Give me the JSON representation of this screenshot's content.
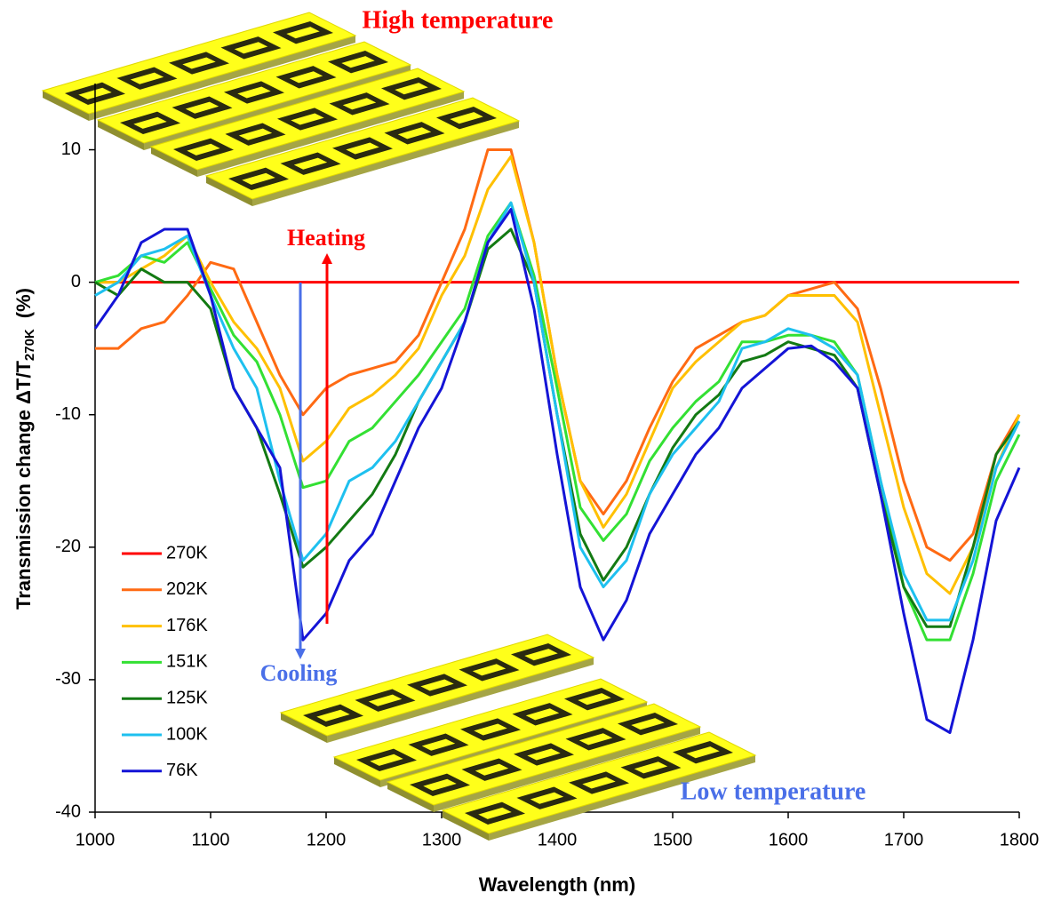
{
  "chart_data": {
    "type": "line",
    "x_label": "Wavelength (nm)",
    "y_label": {
      "text": "Transmission change ΔT/T",
      "sub": "270K",
      "unit": "(%)"
    },
    "annotations": [
      "High temperature",
      "Heating",
      "Cooling",
      "Low temperature"
    ],
    "xlim": [
      1000,
      1800
    ],
    "xticks": [
      1000,
      1100,
      1200,
      1300,
      1400,
      1500,
      1600,
      1700,
      1800
    ],
    "ylim": [
      -40,
      15
    ],
    "yticks": [
      -40,
      -30,
      -20,
      -10,
      0,
      10
    ],
    "legend": "lower left",
    "x": [
      1000,
      1020,
      1040,
      1060,
      1080,
      1100,
      1120,
      1140,
      1160,
      1180,
      1200,
      1220,
      1240,
      1260,
      1280,
      1300,
      1320,
      1340,
      1360,
      1380,
      1400,
      1420,
      1440,
      1460,
      1480,
      1500,
      1520,
      1540,
      1560,
      1580,
      1600,
      1620,
      1640,
      1660,
      1680,
      1700,
      1720,
      1740,
      1760,
      1780,
      1800
    ],
    "series": [
      {
        "name": "270K",
        "color": "#ff0000",
        "values": [
          0,
          0,
          0,
          0,
          0,
          0,
          0,
          0,
          0,
          0,
          0,
          0,
          0,
          0,
          0,
          0,
          0,
          0,
          0,
          0,
          0,
          0,
          0,
          0,
          0,
          0,
          0,
          0,
          0,
          0,
          0,
          0,
          0,
          0,
          0,
          0,
          0,
          0,
          0,
          0,
          0
        ]
      },
      {
        "name": "202K",
        "color": "#ff6a13",
        "values": [
          -5,
          -5,
          -3.5,
          -3,
          -1,
          1.5,
          1,
          -3,
          -7,
          -10,
          -8,
          -7,
          -6.5,
          -6,
          -4,
          0,
          4,
          10,
          10,
          3,
          -7,
          -15,
          -17.5,
          -15,
          -11,
          -7.5,
          -5,
          -4,
          -3,
          -2.5,
          -1,
          -0.5,
          0,
          -2,
          -8,
          -15,
          -20,
          -21,
          -19,
          -13,
          -10
        ]
      },
      {
        "name": "176K",
        "color": "#ffc000",
        "values": [
          0,
          0,
          1,
          2,
          3.5,
          0,
          -3,
          -5,
          -8,
          -13.5,
          -12,
          -9.5,
          -8.5,
          -7,
          -5,
          -1,
          2,
          7,
          9.5,
          3,
          -7,
          -15,
          -18.5,
          -16,
          -12,
          -8,
          -6,
          -4.5,
          -3,
          -2.5,
          -1,
          -1,
          -1,
          -3,
          -10,
          -17,
          -22,
          -23.5,
          -20,
          -14,
          -10
        ]
      },
      {
        "name": "151K",
        "color": "#33e033",
        "values": [
          0,
          0.5,
          2,
          1.5,
          3,
          -0.5,
          -4,
          -6,
          -10,
          -15.5,
          -15,
          -12,
          -11,
          -9,
          -7,
          -4.5,
          -2,
          3.5,
          6,
          0.5,
          -8,
          -17,
          -19.5,
          -17.5,
          -13.5,
          -11,
          -9,
          -7.5,
          -4.5,
          -4.5,
          -4,
          -4,
          -4.5,
          -7,
          -15,
          -23,
          -27,
          -27,
          -22,
          -15,
          -11.5
        ]
      },
      {
        "name": "125K",
        "color": "#137a13",
        "values": [
          0,
          -1,
          1,
          0,
          0,
          -2,
          -8,
          -11,
          -16,
          -21.5,
          -20,
          -18,
          -16,
          -13,
          -9,
          -6,
          -3,
          2.5,
          4,
          0,
          -10,
          -19,
          -22.5,
          -20,
          -16,
          -12.5,
          -10,
          -8.5,
          -6,
          -5.5,
          -4.5,
          -5,
          -5.5,
          -8,
          -16,
          -23,
          -26,
          -26,
          -20,
          -13,
          -10.5
        ]
      },
      {
        "name": "100K",
        "color": "#1ec0ef",
        "values": [
          -1,
          0,
          2,
          2.5,
          3.5,
          -1,
          -5,
          -8,
          -15,
          -21,
          -19,
          -15,
          -14,
          -12,
          -9,
          -6,
          -3,
          3,
          6,
          0,
          -10,
          -20,
          -23,
          -21,
          -16,
          -13,
          -11,
          -9,
          -5,
          -4.5,
          -3.5,
          -4,
          -5,
          -7,
          -15,
          -22,
          -25.5,
          -25.5,
          -21,
          -14,
          -10.5
        ]
      },
      {
        "name": "76K",
        "color": "#1414d6",
        "values": [
          -3.5,
          -1,
          3,
          4,
          4,
          -1,
          -8,
          -11,
          -14,
          -27,
          -25,
          -21,
          -19,
          -15,
          -11,
          -8,
          -3,
          3,
          5.5,
          -2,
          -13,
          -23,
          -27,
          -24,
          -19,
          -16,
          -13,
          -11,
          -8,
          -6.5,
          -5,
          -4.8,
          -6,
          -8,
          -16,
          -25,
          -33,
          -34,
          -27,
          -18,
          -14
        ]
      }
    ]
  }
}
